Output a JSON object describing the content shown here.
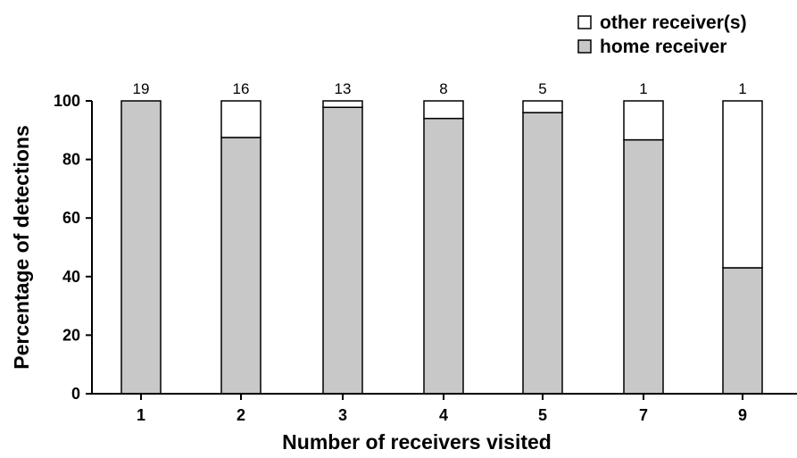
{
  "chart_data": {
    "type": "bar",
    "stacked": true,
    "categories": [
      "1",
      "2",
      "3",
      "4",
      "5",
      "7",
      "9"
    ],
    "series": [
      {
        "name": "home receiver",
        "color": "#c8c8c8",
        "values": [
          100,
          87.5,
          97.8,
          94,
          96,
          86.7,
          43
        ]
      },
      {
        "name": "other receiver(s)",
        "color": "#ffffff",
        "values": [
          0,
          12.5,
          2.2,
          6,
          4,
          13.3,
          57
        ]
      }
    ],
    "bar_counts": [
      "19",
      "16",
      "13",
      "8",
      "5",
      "1",
      "1"
    ],
    "xlabel": "Number of receivers visited",
    "ylabel": "Percentage of detections",
    "ylim": [
      0,
      100
    ],
    "yticks": [
      "0",
      "20",
      "40",
      "60",
      "80",
      "100"
    ],
    "grid": false,
    "legend": {
      "position": "top-right",
      "items": [
        {
          "label": "other receiver(s)",
          "color": "#ffffff"
        },
        {
          "label": "home receiver",
          "color": "#c8c8c8"
        }
      ]
    }
  }
}
